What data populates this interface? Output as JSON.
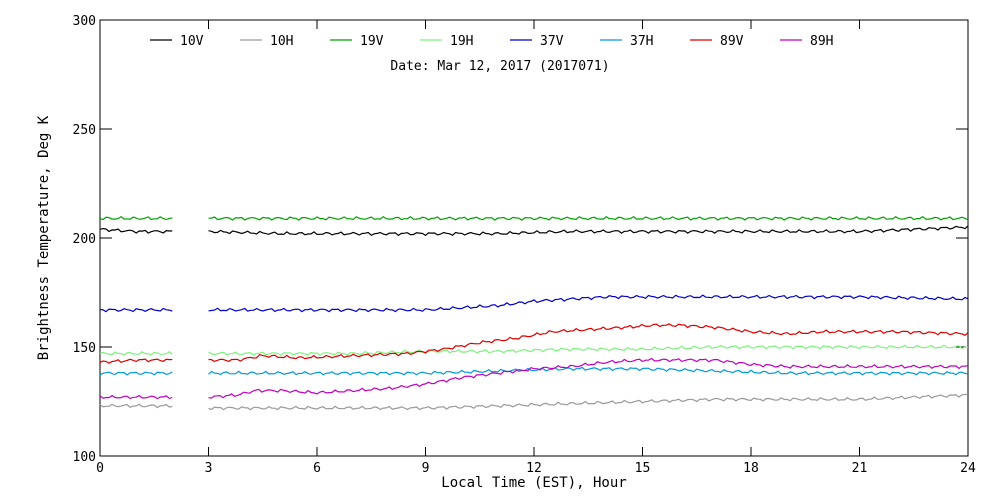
{
  "chart_data": {
    "type": "line",
    "title": "",
    "subtitle": "Date: Mar 12, 2017 (2017071)",
    "xlabel": "Local Time (EST), Hour",
    "ylabel": "Brightness Temperature, Deg K",
    "xlim": [
      0,
      24
    ],
    "ylim": [
      100,
      300
    ],
    "xticks": [
      0,
      3,
      6,
      9,
      12,
      15,
      18,
      21,
      24
    ],
    "yticks": [
      100,
      150,
      200,
      250,
      300
    ],
    "grid": false,
    "legend_position": "top",
    "data_gap": [
      2,
      3
    ],
    "series": [
      {
        "name": "10V",
        "color": "#000000",
        "x": [
          0,
          1,
          2,
          3,
          5,
          7,
          9,
          11,
          13,
          15,
          17,
          19,
          21,
          24
        ],
        "y": [
          204,
          203,
          203,
          203,
          202,
          202,
          202,
          202,
          203,
          203,
          203,
          203,
          203,
          205
        ]
      },
      {
        "name": "10H",
        "color": "#999999",
        "x": [
          0,
          1,
          2,
          3,
          5,
          7,
          9,
          11,
          13,
          15,
          17,
          19,
          21,
          24
        ],
        "y": [
          123,
          123,
          123,
          122,
          122,
          122,
          122,
          123,
          124,
          125,
          126,
          126,
          126,
          128
        ]
      },
      {
        "name": "19V",
        "color": "#00a000",
        "x": [
          0,
          2,
          3,
          6,
          9,
          12,
          15,
          18,
          21,
          24
        ],
        "y": [
          209,
          209,
          209,
          209,
          209,
          209,
          209,
          209,
          209,
          209
        ]
      },
      {
        "name": "19H",
        "color": "#7ff07f",
        "x": [
          0,
          1,
          2,
          3,
          5,
          7,
          9,
          11,
          13,
          15,
          17,
          19,
          21,
          24
        ],
        "y": [
          147,
          147,
          147,
          147,
          147,
          147,
          148,
          148,
          149,
          149,
          150,
          150,
          150,
          150
        ]
      },
      {
        "name": "37V",
        "color": "#0000c8",
        "x": [
          0,
          1,
          2,
          3,
          5,
          7,
          9,
          10,
          11,
          12,
          13,
          14,
          15,
          17,
          19,
          21,
          24
        ],
        "y": [
          167,
          167,
          167,
          167,
          167,
          167,
          167,
          168,
          169,
          171,
          172,
          173,
          173,
          173,
          173,
          173,
          172
        ]
      },
      {
        "name": "37H",
        "color": "#0099dd",
        "x": [
          0,
          1,
          2,
          3,
          5,
          7,
          9,
          11,
          13,
          15,
          17,
          19,
          21,
          24
        ],
        "y": [
          138,
          138,
          138,
          138,
          138,
          138,
          138,
          139,
          140,
          140,
          139,
          138,
          138,
          138
        ]
      },
      {
        "name": "89V",
        "color": "#dd0000",
        "x": [
          0,
          1,
          2,
          3,
          3.8,
          4.5,
          5.5,
          7,
          8.5,
          9.5,
          10.5,
          11.5,
          12.5,
          13.5,
          14.5,
          15.3,
          16,
          17,
          18,
          19,
          20,
          21,
          22,
          24
        ],
        "y": [
          143,
          144,
          144,
          144,
          144,
          146,
          145,
          146,
          147,
          149,
          152,
          154,
          157,
          158,
          159,
          160,
          160,
          159,
          157,
          156,
          157,
          157,
          157,
          156
        ]
      },
      {
        "name": "89H",
        "color": "#c000c0",
        "x": [
          0,
          1,
          2,
          3,
          3.8,
          4.3,
          5,
          6,
          7,
          8,
          9,
          10,
          11,
          12,
          13,
          14,
          15,
          16,
          17,
          18,
          19,
          20,
          21,
          24
        ],
        "y": [
          127,
          127,
          127,
          127,
          128,
          130,
          130,
          129,
          130,
          131,
          133,
          136,
          138,
          140,
          141,
          143,
          144,
          144,
          144,
          142,
          141,
          141,
          141,
          141
        ]
      }
    ]
  }
}
